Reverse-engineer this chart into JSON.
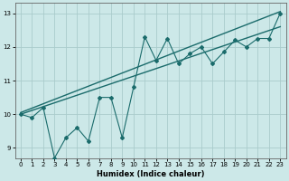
{
  "title": "",
  "xlabel": "Humidex (Indice chaleur)",
  "ylabel": "",
  "bg_color": "#cce8e8",
  "grid_color": "#aacccc",
  "line_color": "#1a6b6b",
  "xlim": [
    -0.5,
    23.5
  ],
  "ylim": [
    8.7,
    13.3
  ],
  "xticks": [
    0,
    1,
    2,
    3,
    4,
    5,
    6,
    7,
    8,
    9,
    10,
    11,
    12,
    13,
    14,
    15,
    16,
    17,
    18,
    19,
    20,
    21,
    22,
    23
  ],
  "yticks": [
    9,
    10,
    11,
    12,
    13
  ],
  "line1_x": [
    0,
    1,
    2,
    3,
    4,
    5,
    6,
    7,
    8,
    9,
    10,
    11,
    12,
    13,
    14,
    15,
    16,
    17,
    18,
    19,
    20,
    21,
    22,
    23
  ],
  "line1_y": [
    10.0,
    9.9,
    10.2,
    8.7,
    9.3,
    9.6,
    9.2,
    10.5,
    10.5,
    9.3,
    10.8,
    12.3,
    11.6,
    12.25,
    11.5,
    11.8,
    12.0,
    11.5,
    11.85,
    12.2,
    12.0,
    12.25,
    12.25,
    13.0
  ],
  "line2_x": [
    0,
    23
  ],
  "line2_y": [
    10.0,
    12.6
  ],
  "line3_x": [
    0,
    23
  ],
  "line3_y": [
    10.05,
    13.05
  ],
  "xlabel_fontsize": 6.0,
  "tick_fontsize": 5.0
}
